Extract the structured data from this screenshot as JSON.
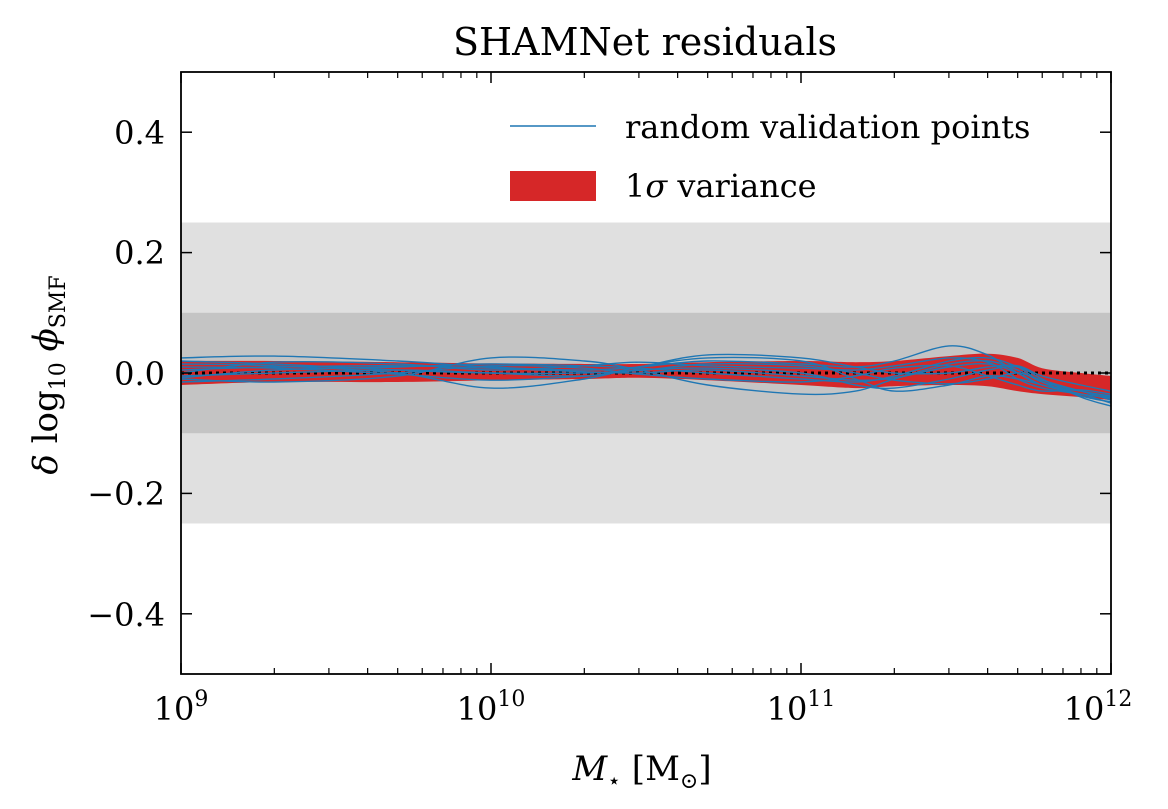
{
  "chart_data": {
    "type": "line",
    "title": "SHAMNet residuals",
    "xscale": "log",
    "xlim": [
      1000000000.0,
      1000000000000.0
    ],
    "ylim": [
      -0.5,
      0.5
    ],
    "x_ticks": [
      {
        "value": 1000000000.0,
        "base": "10",
        "exp": "9"
      },
      {
        "value": 10000000000.0,
        "base": "10",
        "exp": "10"
      },
      {
        "value": 100000000000.0,
        "base": "10",
        "exp": "11"
      },
      {
        "value": 1000000000000.0,
        "base": "10",
        "exp": "12"
      }
    ],
    "y_ticks": [
      {
        "value": 0.4,
        "label": "0.4"
      },
      {
        "value": 0.2,
        "label": "0.2"
      },
      {
        "value": 0.0,
        "label": "0.0"
      },
      {
        "value": -0.2,
        "label": "−0.2"
      },
      {
        "value": -0.4,
        "label": "−0.4"
      }
    ],
    "xlabel": {
      "main": "M",
      "sub": "⋆",
      "rest": " [M",
      "sub2": "⊙",
      "end": "]"
    },
    "ylabel": {
      "delta": "δ",
      "log": " log",
      "logsub": "10",
      "phi": " ϕ",
      "phisub": "SMF"
    },
    "shaded_bands": [
      {
        "range": [
          -0.25,
          0.25
        ],
        "color": "#e0e0e0"
      },
      {
        "range": [
          -0.1,
          0.1
        ],
        "color": "#c4c4c4"
      }
    ],
    "reference_line": {
      "y": 0.0,
      "style": "dotted",
      "color": "#000000"
    },
    "variance_band": {
      "name": "1σ variance",
      "color": "#d62728",
      "x": [
        1000000000.0,
        2000000000.0,
        5000000000.0,
        10000000000.0,
        20000000000.0,
        30000000000.0,
        50000000000.0,
        100000000000.0,
        150000000000.0,
        200000000000.0,
        300000000000.0,
        400000000000.0,
        500000000000.0,
        600000000000.0,
        800000000000.0,
        1000000000000.0
      ],
      "lower": [
        -0.02,
        -0.015,
        -0.015,
        -0.012,
        -0.01,
        -0.008,
        -0.012,
        -0.02,
        -0.025,
        -0.022,
        -0.02,
        -0.022,
        -0.03,
        -0.035,
        -0.04,
        -0.045
      ],
      "upper": [
        0.02,
        0.02,
        0.018,
        0.016,
        0.015,
        0.015,
        0.018,
        0.02,
        0.018,
        0.02,
        0.028,
        0.032,
        0.025,
        0.008,
        0.0,
        -0.005
      ]
    },
    "series_style": {
      "color": "#1f77b4"
    },
    "legend": {
      "position": "top-right",
      "entries": [
        {
          "label": "random validation points",
          "kind": "line",
          "color": "#1f77b4"
        },
        {
          "label_main": "1",
          "label_sym": "σ",
          "label_rest": " variance",
          "kind": "patch",
          "color": "#d62728"
        }
      ]
    },
    "x": [
      1000000000.0,
      2000000000.0,
      5000000000.0,
      10000000000.0,
      20000000000.0,
      30000000000.0,
      50000000000.0,
      100000000000.0,
      150000000000.0,
      200000000000.0,
      300000000000.0,
      400000000000.0,
      500000000000.0,
      600000000000.0,
      800000000000.0,
      1000000000000.0
    ],
    "series": [
      {
        "values": [
          0.025,
          0.028,
          0.02,
          0.01,
          0.005,
          0.01,
          0.02,
          0.015,
          0.01,
          0.02,
          0.045,
          0.03,
          0.0,
          -0.02,
          -0.03,
          -0.04
        ]
      },
      {
        "values": [
          0.015,
          0.012,
          0.0,
          -0.025,
          -0.01,
          0.01,
          0.025,
          0.02,
          -0.01,
          -0.03,
          -0.02,
          -0.005,
          -0.01,
          -0.02,
          -0.035,
          -0.05
        ]
      },
      {
        "values": [
          -0.01,
          -0.015,
          -0.005,
          0.025,
          0.02,
          0.005,
          -0.02,
          -0.035,
          -0.03,
          -0.01,
          0.015,
          0.02,
          0.005,
          -0.015,
          -0.03,
          -0.045
        ]
      },
      {
        "values": [
          0.005,
          0.01,
          0.012,
          0.008,
          0.002,
          0.0,
          0.005,
          -0.005,
          -0.012,
          -0.008,
          0.01,
          0.015,
          0.0,
          -0.02,
          -0.035,
          -0.04
        ]
      },
      {
        "values": [
          -0.005,
          0.0,
          0.005,
          0.0,
          -0.005,
          0.01,
          0.03,
          0.025,
          0.01,
          0.0,
          0.0,
          0.01,
          0.012,
          -0.005,
          -0.02,
          -0.03
        ]
      },
      {
        "values": [
          0.01,
          0.008,
          -0.002,
          -0.012,
          -0.005,
          0.005,
          0.008,
          0.0,
          -0.02,
          -0.025,
          -0.01,
          0.005,
          0.01,
          -0.01,
          -0.04,
          -0.055
        ]
      },
      {
        "values": [
          0.0,
          0.018,
          0.015,
          0.005,
          0.012,
          0.018,
          0.012,
          0.008,
          0.005,
          0.012,
          0.025,
          0.018,
          -0.01,
          -0.025,
          -0.035,
          -0.042
        ]
      },
      {
        "values": [
          -0.015,
          -0.01,
          0.0,
          0.012,
          0.008,
          -0.002,
          -0.01,
          -0.015,
          -0.005,
          0.008,
          0.012,
          -0.005,
          -0.02,
          -0.03,
          -0.028,
          -0.035
        ]
      },
      {
        "values": [
          0.02,
          0.015,
          0.005,
          0.0,
          0.0,
          0.004,
          0.015,
          0.012,
          0.0,
          -0.012,
          -0.018,
          -0.01,
          0.0,
          -0.012,
          -0.03,
          -0.038
        ]
      },
      {
        "values": [
          -0.008,
          0.005,
          0.01,
          0.015,
          0.012,
          0.008,
          0.0,
          -0.01,
          -0.015,
          -0.005,
          0.02,
          0.025,
          0.01,
          -0.015,
          -0.038,
          -0.048
        ]
      }
    ]
  }
}
